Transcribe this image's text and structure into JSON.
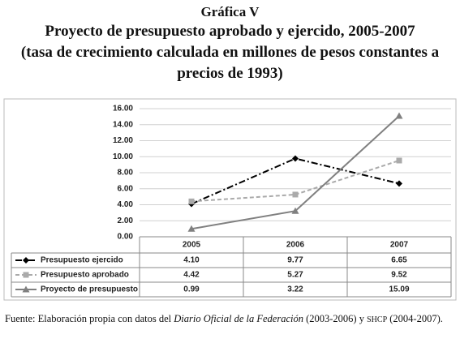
{
  "chart_data": {
    "type": "line",
    "label": "Gráfica V",
    "title": "Proyecto de presupuesto aprobado y ejercido, 2005-2007",
    "subtitle": [
      "(tasa de crecimiento calculada en millones de pesos constantes a",
      "precios de 1993)"
    ],
    "categories": [
      "2005",
      "2006",
      "2007"
    ],
    "series": [
      {
        "name": "Presupuesto ejercido",
        "color": "#000000",
        "dash": "dashdot",
        "marker": "diamond",
        "values": [
          4.1,
          9.77,
          6.65
        ],
        "value_labels": [
          "4.10",
          "9.77",
          "6.65"
        ]
      },
      {
        "name": "Presupuesto aprobado",
        "color": "#aaaaaa",
        "dash": "dashed",
        "marker": "square",
        "values": [
          4.42,
          5.27,
          9.52
        ],
        "value_labels": [
          "4.42",
          "5.27",
          "9.52"
        ]
      },
      {
        "name": "Proyecto de presupuesto",
        "color": "#808080",
        "dash": "solid",
        "marker": "triangle",
        "values": [
          0.99,
          3.22,
          15.09
        ],
        "value_labels": [
          "0.99",
          "3.22",
          "15.09"
        ]
      }
    ],
    "ylim": [
      0,
      16
    ],
    "yticks": [
      {
        "value": 0,
        "label": "0.00"
      },
      {
        "value": 2,
        "label": "2.00"
      },
      {
        "value": 4,
        "label": "4.00"
      },
      {
        "value": 6,
        "label": "6.00"
      },
      {
        "value": 8,
        "label": "8.00"
      },
      {
        "value": 10,
        "label": "10.00"
      },
      {
        "value": 12,
        "label": "12.00"
      },
      {
        "value": 14,
        "label": "14.00"
      },
      {
        "value": 16,
        "label": "16.00"
      }
    ],
    "grid": true,
    "source": [
      "Fuente: Elaboración propia con datos del ",
      "Diario Oficial de la Federación",
      " (2003-2006) y ",
      "SHCP",
      " (2004-2007)."
    ]
  }
}
